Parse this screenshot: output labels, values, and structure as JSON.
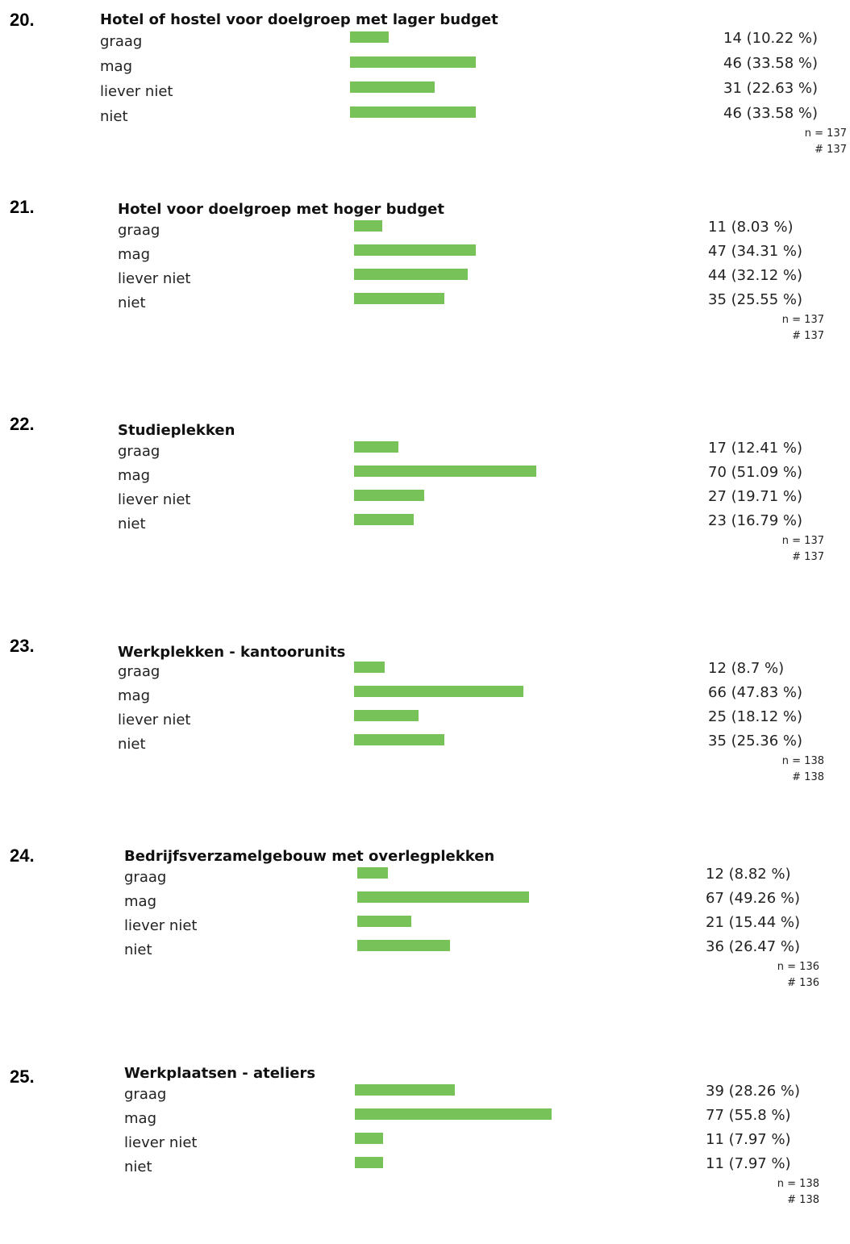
{
  "questions": [
    {
      "number": "20.",
      "title": "Hotel of hostel voor doelgroep met lager budget",
      "rows": [
        {
          "label": "graag",
          "count": 14,
          "percent": 10.22,
          "value": "14 (10.22 %)"
        },
        {
          "label": "mag",
          "count": 46,
          "percent": 33.58,
          "value": "46 (33.58 %)"
        },
        {
          "label": "liever niet",
          "count": 31,
          "percent": 22.63,
          "value": "31 (22.63 %)"
        },
        {
          "label": "niet",
          "count": 46,
          "percent": 33.58,
          "value": "46 (33.58 %)"
        }
      ],
      "n": "n = 137",
      "hash": "# 137"
    },
    {
      "number": "21.",
      "title": "Hotel voor doelgroep met hoger budget",
      "rows": [
        {
          "label": "graag",
          "count": 11,
          "percent": 8.03,
          "value": "11 (8.03 %)"
        },
        {
          "label": "mag",
          "count": 47,
          "percent": 34.31,
          "value": "47 (34.31 %)"
        },
        {
          "label": "liever niet",
          "count": 44,
          "percent": 32.12,
          "value": "44 (32.12 %)"
        },
        {
          "label": "niet",
          "count": 35,
          "percent": 25.55,
          "value": "35 (25.55 %)"
        }
      ],
      "n": "n = 137",
      "hash": "# 137"
    },
    {
      "number": "22.",
      "title": "Studieplekken",
      "rows": [
        {
          "label": "graag",
          "count": 17,
          "percent": 12.41,
          "value": "17 (12.41 %)"
        },
        {
          "label": "mag",
          "count": 70,
          "percent": 51.09,
          "value": "70 (51.09 %)"
        },
        {
          "label": "liever niet",
          "count": 27,
          "percent": 19.71,
          "value": "27 (19.71 %)"
        },
        {
          "label": "niet",
          "count": 23,
          "percent": 16.79,
          "value": "23 (16.79 %)"
        }
      ],
      "n": "n = 137",
      "hash": "# 137"
    },
    {
      "number": "23.",
      "title": "Werkplekken - kantoorunits",
      "rows": [
        {
          "label": "graag",
          "count": 12,
          "percent": 8.7,
          "value": "12 (8.7 %)"
        },
        {
          "label": "mag",
          "count": 66,
          "percent": 47.83,
          "value": "66 (47.83 %)"
        },
        {
          "label": "liever niet",
          "count": 25,
          "percent": 18.12,
          "value": "25 (18.12 %)"
        },
        {
          "label": "niet",
          "count": 35,
          "percent": 25.36,
          "value": "35 (25.36 %)"
        }
      ],
      "n": "n = 138",
      "hash": "# 138"
    },
    {
      "number": "24.",
      "title": "Bedrijfsverzamelgebouw met overlegplekken",
      "rows": [
        {
          "label": "graag",
          "count": 12,
          "percent": 8.82,
          "value": "12 (8.82 %)"
        },
        {
          "label": "mag",
          "count": 67,
          "percent": 49.26,
          "value": "67 (49.26 %)"
        },
        {
          "label": "liever niet",
          "count": 21,
          "percent": 15.44,
          "value": "21 (15.44 %)"
        },
        {
          "label": "niet",
          "count": 36,
          "percent": 26.47,
          "value": "36 (26.47 %)"
        }
      ],
      "n": "n = 136",
      "hash": "# 136"
    },
    {
      "number": "25.",
      "title": "Werkplaatsen - ateliers",
      "rows": [
        {
          "label": "graag",
          "count": 39,
          "percent": 28.26,
          "value": "39 (28.26 %)"
        },
        {
          "label": "mag",
          "count": 77,
          "percent": 55.8,
          "value": "77 (55.8 %)"
        },
        {
          "label": "liever niet",
          "count": 11,
          "percent": 7.97,
          "value": "11 (7.97 %)"
        },
        {
          "label": "niet",
          "count": 11,
          "percent": 7.97,
          "value": "11 (7.97 %)"
        }
      ],
      "n": "n = 138",
      "hash": "# 138"
    }
  ],
  "colors": {
    "bar": "#78c25a"
  },
  "chart_data": [
    {
      "type": "bar",
      "title": "Hotel of hostel voor doelgroep met lager budget",
      "categories": [
        "graag",
        "mag",
        "liever niet",
        "niet"
      ],
      "values": [
        14,
        46,
        31,
        46
      ],
      "percentages": [
        10.22,
        33.58,
        22.63,
        33.58
      ]
    },
    {
      "type": "bar",
      "title": "Hotel voor doelgroep met hoger budget",
      "categories": [
        "graag",
        "mag",
        "liever niet",
        "niet"
      ],
      "values": [
        11,
        47,
        44,
        35
      ],
      "percentages": [
        8.03,
        34.31,
        32.12,
        25.55
      ]
    },
    {
      "type": "bar",
      "title": "Studieplekken",
      "categories": [
        "graag",
        "mag",
        "liever niet",
        "niet"
      ],
      "values": [
        17,
        70,
        27,
        23
      ],
      "percentages": [
        12.41,
        51.09,
        19.71,
        16.79
      ]
    },
    {
      "type": "bar",
      "title": "Werkplekken - kantoorunits",
      "categories": [
        "graag",
        "mag",
        "liever niet",
        "niet"
      ],
      "values": [
        12,
        66,
        25,
        35
      ],
      "percentages": [
        8.7,
        47.83,
        18.12,
        25.36
      ]
    },
    {
      "type": "bar",
      "title": "Bedrijfsverzamelgebouw met overlegplekken",
      "categories": [
        "graag",
        "mag",
        "liever niet",
        "niet"
      ],
      "values": [
        12,
        67,
        21,
        36
      ],
      "percentages": [
        8.82,
        49.26,
        15.44,
        26.47
      ]
    },
    {
      "type": "bar",
      "title": "Werkplaatsen - ateliers",
      "categories": [
        "graag",
        "mag",
        "liever niet",
        "niet"
      ],
      "values": [
        39,
        77,
        11,
        11
      ],
      "percentages": [
        28.26,
        55.8,
        7.97,
        7.97
      ]
    }
  ]
}
